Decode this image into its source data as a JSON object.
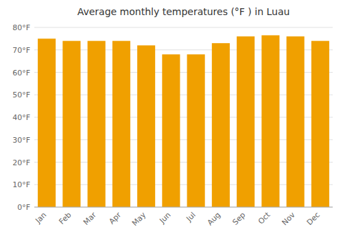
{
  "chart_data": {
    "type": "bar",
    "title": "Average monthly temperatures (°F ) in Luau",
    "categories": [
      "Jan",
      "Feb",
      "Mar",
      "Apr",
      "May",
      "Jun",
      "Jul",
      "Aug",
      "Sep",
      "Oct",
      "Nov",
      "Dec"
    ],
    "values": [
      75,
      74,
      74,
      74,
      72,
      68,
      68,
      73,
      76,
      76.5,
      76,
      74
    ],
    "color": "#f0a000",
    "ylim": [
      0,
      80
    ],
    "yticks": [
      {
        "value": 0,
        "label": "0°F"
      },
      {
        "value": 10,
        "label": "10°F"
      },
      {
        "value": 20,
        "label": "20°F"
      },
      {
        "value": 30,
        "label": "30°F"
      },
      {
        "value": 40,
        "label": "40°F"
      },
      {
        "value": 50,
        "label": "50°F"
      },
      {
        "value": 60,
        "label": "60°F"
      },
      {
        "value": 70,
        "label": "70°F"
      },
      {
        "value": 80,
        "label": "80°F"
      }
    ],
    "grid": true
  }
}
